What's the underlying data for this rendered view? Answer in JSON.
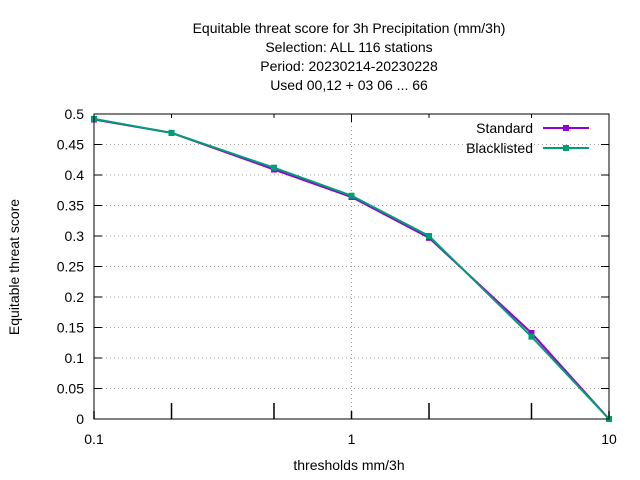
{
  "chart_data": {
    "type": "line",
    "title_lines": [
      "Equitable threat score  for 3h Precipitation (mm/3h)",
      "Selection: ALL    116 stations",
      "Period: 20230214-20230228",
      "Used  00,12  + 03 06 ... 66"
    ],
    "xlabel": "thresholds mm/3h",
    "ylabel": "Equitable threat score",
    "x_scale": "log",
    "xlim": [
      0.1,
      10
    ],
    "ylim": [
      0,
      0.5
    ],
    "x_ticks": [
      0.1,
      0.2,
      0.5,
      1,
      2,
      5,
      10
    ],
    "x_tick_labels": [
      "0.1",
      "",
      "",
      "1",
      "",
      "",
      "10"
    ],
    "y_ticks": [
      0,
      0.05,
      0.1,
      0.15,
      0.2,
      0.25,
      0.3,
      0.35,
      0.4,
      0.45,
      0.5
    ],
    "y_tick_labels": [
      "0",
      "0.05",
      "0.1",
      "0.15",
      "0.2",
      "0.25",
      "0.3",
      "0.35",
      "0.4",
      "0.45",
      "0.5"
    ],
    "grid": true,
    "legend_position": "top-right",
    "series": [
      {
        "name": "Standard",
        "color": "#9400d3",
        "x": [
          0.1,
          0.2,
          0.5,
          1,
          2,
          5,
          10
        ],
        "y": [
          0.491,
          0.469,
          0.409,
          0.364,
          0.297,
          0.141,
          0.0
        ]
      },
      {
        "name": "Blacklisted",
        "color": "#009e73",
        "x": [
          0.1,
          0.2,
          0.5,
          1,
          2,
          5,
          10
        ],
        "y": [
          0.492,
          0.469,
          0.412,
          0.366,
          0.3,
          0.135,
          0.0
        ]
      }
    ]
  }
}
